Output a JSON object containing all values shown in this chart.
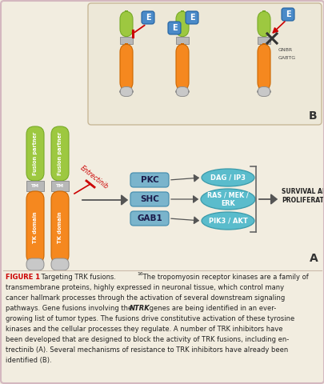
{
  "bg_color": "#f2ede0",
  "border_color": "#d4b8c0",
  "title_color": "#cc0000",
  "orange_color": "#f5881f",
  "green_color": "#9dc840",
  "gray_tm_color": "#b8b8b8",
  "gray_cap_color": "#c8c8c8",
  "blue_box_color": "#7ab4cc",
  "teal_ellipse_color": "#5abccc",
  "teal_ellipse_edge": "#3a9aaa",
  "blue_E_color": "#4a8ac8",
  "panel_b_bg": "#ede8d8",
  "panel_b_edge": "#c8b898",
  "diagram_bg": "#f2ede0",
  "survival_text": "SURVIVAL AND\nPROLIFERATION",
  "label_A": "A",
  "label_B": "B",
  "pkc_label": "PKC",
  "shc_label": "SHC",
  "gab1_label": "GAB1",
  "dag_label": "DAG / IP3",
  "ras_label": "RAS / MEK /\nERK",
  "pik3_label": "PIK3 / AKT",
  "tm_label": "TM",
  "tk_domain_label": "TK domain",
  "fusion_partner_label": "Fusion partner",
  "entrectinib_label": "Entrectinib",
  "gnbr_label": "GNBR",
  "gabtg_label": "GABTG",
  "figure_label": "FIGURE 1",
  "caption_line1": " Targeting TRK fusions.",
  "caption_sup": "16",
  "caption_line1b": " The tropomyosin receptor kinases are a family of",
  "caption_line2": "transmembrane proteins, highly expressed in neuronal tissue, which control many",
  "caption_line3": "cancer hallmark processes through the activation of several downstream signaling",
  "caption_line4a": "pathways. Gene fusions involving the ",
  "caption_line4b": "NTRK",
  "caption_line4c": " genes are being identified in an ever-",
  "caption_line5": "growing list of tumor types. The fusions drive constitutive activation of these tyrosine",
  "caption_line6": "kinases and the cellular processes they regulate. A number of TRK inhibitors have",
  "caption_line7": "been developed that are designed to block the activity of TRK fusions, including en-",
  "caption_line8": "trectinib (A). Several mechanisms of resistance to TRK inhibitors have already been",
  "caption_line9": "identified (B)."
}
